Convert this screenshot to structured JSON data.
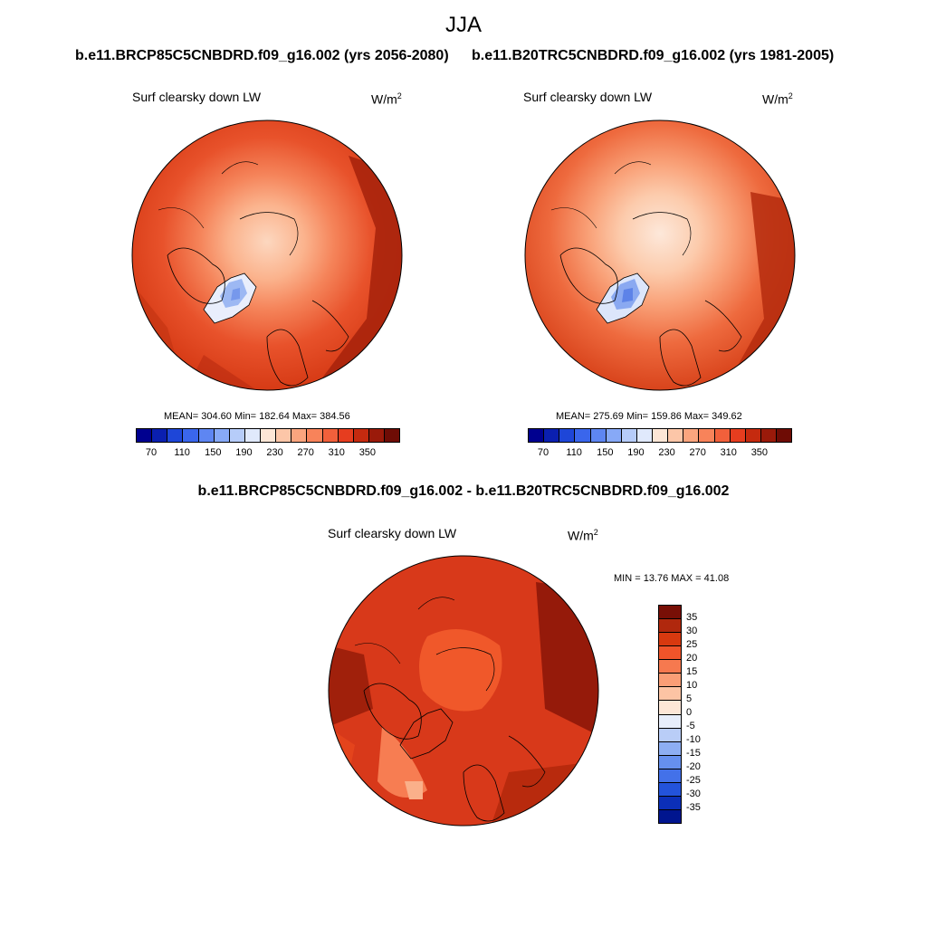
{
  "title": "JJA",
  "panel_left": {
    "case": "b.e11.BRCP85C5CNBDRD.f09_g16.002 (yrs 2056-2080)",
    "variable": "Surf clearsky down LW",
    "units": "W/m",
    "units_exp": "2",
    "stats": "MEAN= 304.60  Min= 182.64  Max= 384.56"
  },
  "panel_right": {
    "case": "b.e11.B20TRC5CNBDRD.f09_g16.002 (yrs 1981-2005)",
    "variable": "Surf clearsky down LW",
    "units": "W/m",
    "units_exp": "2",
    "stats": "MEAN= 275.69  Min= 159.86  Max= 349.62"
  },
  "panel_diff": {
    "case": "b.e11.BRCP85C5CNBDRD.f09_g16.002 - b.e11.B20TRC5CNBDRD.f09_g16.002",
    "variable": "Surf clearsky down LW",
    "units": "W/m",
    "units_exp": "2",
    "stats": "MIN =  13.76 MAX =  41.08"
  },
  "abs_colorbar": {
    "labels": [
      "70",
      "110",
      "150",
      "190",
      "230",
      "270",
      "310",
      "350"
    ],
    "colors": [
      "#00008f",
      "#0a1fb0",
      "#1e46d8",
      "#3a66ec",
      "#5e86f2",
      "#87a9f7",
      "#b6ccf9",
      "#e0e9fc",
      "#fde6d6",
      "#fcc6a8",
      "#fba57e",
      "#f8835a",
      "#f2603b",
      "#e63d1f",
      "#c52a0f",
      "#9a1a0a",
      "#6e0c05"
    ]
  },
  "diff_colorbar": {
    "labels": [
      "35",
      "30",
      "25",
      "20",
      "15",
      "10",
      "5",
      "0",
      "-5",
      "-10",
      "-15",
      "-20",
      "-25",
      "-30",
      "-35"
    ],
    "colors": [
      "#780f06",
      "#b0280d",
      "#d8390f",
      "#f0542a",
      "#f6794f",
      "#fa9e76",
      "#fcc4a4",
      "#fde7d7",
      "#e7eefb",
      "#b9cdf7",
      "#8daef3",
      "#6690ef",
      "#4371e9",
      "#2353db",
      "#0b2fb8",
      "#00158f"
    ]
  }
}
